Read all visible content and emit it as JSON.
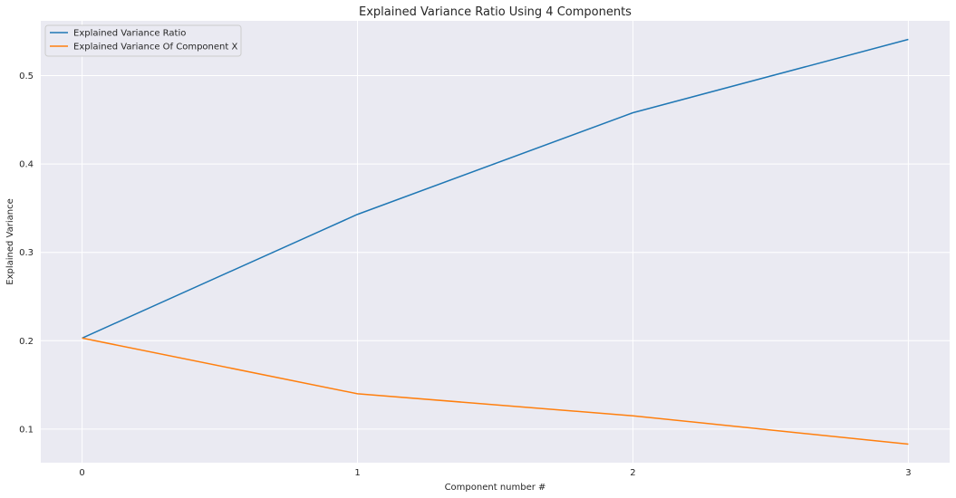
{
  "chart_data": {
    "type": "line",
    "title": "Explained Variance Ratio Using 4 Components",
    "xlabel": "Component number #",
    "ylabel": "Explained Variance",
    "x": [
      0,
      1,
      2,
      3
    ],
    "xlim": [
      -0.15,
      3.15
    ],
    "ylim": [
      0.062,
      0.562
    ],
    "xticks": [
      "0",
      "1",
      "2",
      "3"
    ],
    "yticks": [
      "0.1",
      "0.2",
      "0.3",
      "0.4",
      "0.5"
    ],
    "grid": true,
    "legend_position": "top-left",
    "background": "#eaeaf2",
    "series": [
      {
        "name": "Explained Variance Ratio",
        "color": "#1f77b4",
        "values": [
          0.203,
          0.343,
          0.458,
          0.541
        ]
      },
      {
        "name": "Explained Variance Of Component X",
        "color": "#ff7f0e",
        "values": [
          0.203,
          0.14,
          0.115,
          0.083
        ]
      }
    ]
  }
}
